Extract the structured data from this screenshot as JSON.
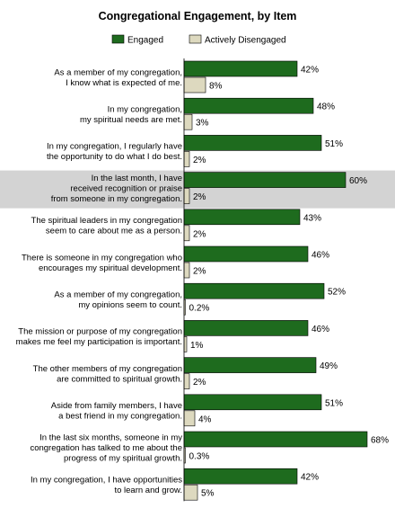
{
  "chart_data": {
    "type": "bar",
    "title": "Congregational Engagement, by Item",
    "orientation": "horizontal",
    "highlighted_category_index": 3,
    "series": [
      {
        "name": "Engaged",
        "color": "#1e6b1e",
        "values": [
          42,
          48,
          51,
          60,
          43,
          46,
          52,
          46,
          49,
          51,
          68,
          42
        ],
        "labels": [
          "42%",
          "48%",
          "51%",
          "60%",
          "43%",
          "46%",
          "52%",
          "46%",
          "49%",
          "51%",
          "68%",
          "42%"
        ]
      },
      {
        "name": "Actively Disengaged",
        "color": "#ddd9bf",
        "values": [
          8,
          3,
          2,
          2,
          2,
          2,
          0.2,
          1,
          2,
          4,
          0.3,
          5
        ],
        "labels": [
          "8%",
          "3%",
          "2%",
          "2%",
          "2%",
          "2%",
          "0.2%",
          "1%",
          "2%",
          "4%",
          "0.3%",
          "5%"
        ]
      }
    ],
    "categories": [
      [
        "As a member of my congregation,",
        "I know what is expected of me."
      ],
      [
        "In my congregation,",
        "my spiritual needs are met."
      ],
      [
        "In my congregation, I regularly have",
        "the opportunity to do what I do best."
      ],
      [
        "In the last month, I have",
        "received recognition or praise",
        "from someone in my congregation."
      ],
      [
        "The spiritual leaders in my congregation",
        "seem to care about me as a person."
      ],
      [
        "There is someone in my congregation who",
        "encourages my spiritual development."
      ],
      [
        "As a member of my congregation,",
        "my opinions seem to count."
      ],
      [
        "The mission or purpose of my congregation",
        "makes me feel my participation is important."
      ],
      [
        "The other members of my congregation",
        "are committed to spiritual growth."
      ],
      [
        "Aside from family members, I have",
        "a best friend in my congregation."
      ],
      [
        "In the last six months, someone in my",
        "congregation has talked to me about the",
        "progress of my spiritual growth."
      ],
      [
        "In my congregation, I have opportunities",
        "to learn and grow."
      ]
    ],
    "xlim": [
      0,
      70
    ],
    "grid": false,
    "legend_position": "top"
  }
}
